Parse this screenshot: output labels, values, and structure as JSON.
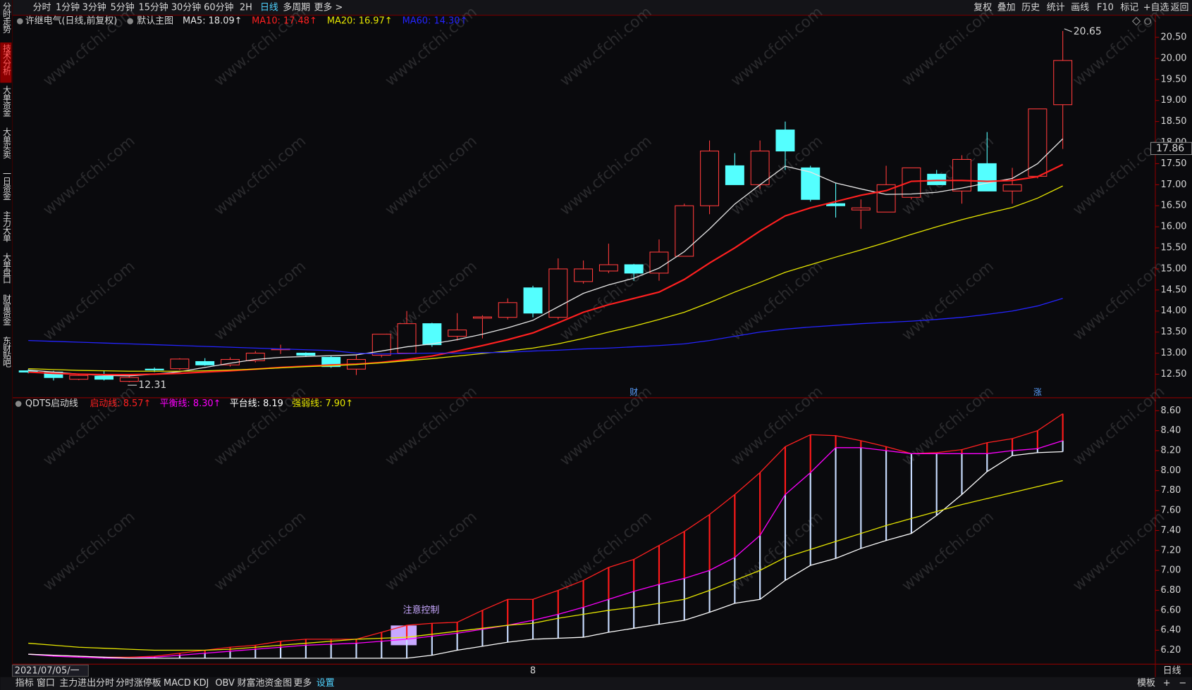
{
  "ui": {
    "tabs": [
      "分时",
      "1分钟",
      "3分钟",
      "5分钟",
      "15分钟",
      "30分钟",
      "60分钟",
      "2H",
      "日线",
      "多周期",
      "更多 >"
    ],
    "tools": [
      "复权",
      "叠加",
      "历史",
      "统计",
      "画线",
      "F10",
      "标记",
      "+自选",
      "返回"
    ],
    "sidebar": [
      "分时走势",
      "技术分析",
      "大单资金",
      "大单买卖",
      "一日资金",
      "主力大单",
      "大单盘口",
      "财富资金",
      "东财贴吧"
    ],
    "bottom_tabs": [
      "指标",
      "窗口",
      "主力进出分时",
      "分时涨停板",
      "MACD",
      "KDJ",
      "OBV",
      "财富池资金图",
      "更多",
      "设置"
    ],
    "period": "日线",
    "template": "模板",
    "plus": "+",
    "minus": "−",
    "watermark": "www.cfchi.com"
  },
  "chart_data": [
    {
      "type": "candlestick",
      "title": "许继电气(日线,前复权)",
      "subtitle": "默认主图",
      "categories": [
        "2021/07/05/一",
        null,
        null,
        null,
        null,
        null,
        null,
        null,
        null,
        null,
        null,
        null,
        null,
        null,
        null,
        null,
        null,
        null,
        null,
        null,
        "8",
        null,
        null,
        null,
        null,
        null,
        null,
        null,
        null,
        null,
        null,
        null,
        null,
        null,
        null,
        null,
        null,
        null,
        null,
        null,
        null,
        null
      ],
      "event_labels": [
        null,
        null,
        null,
        null,
        null,
        null,
        null,
        null,
        null,
        null,
        null,
        null,
        null,
        null,
        null,
        null,
        null,
        null,
        null,
        null,
        null,
        null,
        null,
        null,
        "财",
        null,
        null,
        null,
        null,
        null,
        null,
        null,
        null,
        null,
        null,
        null,
        null,
        null,
        null,
        null,
        "涨",
        null
      ],
      "open": [
        12.58,
        12.55,
        12.38,
        12.45,
        12.33,
        12.62,
        12.63,
        12.8,
        12.72,
        12.82,
        13.08,
        13.0,
        12.9,
        12.62,
        12.95,
        13.0,
        13.7,
        13.4,
        13.83,
        13.85,
        14.55,
        13.85,
        14.7,
        14.95,
        15.1,
        14.9,
        15.3,
        16.5,
        17.45,
        17.0,
        18.3,
        17.4,
        16.55,
        16.4,
        16.35,
        16.7,
        17.25,
        16.85,
        17.5,
        16.85,
        17.2,
        18.9
      ],
      "close": [
        12.55,
        12.42,
        12.47,
        12.38,
        12.42,
        12.6,
        12.86,
        12.72,
        12.85,
        13.0,
        13.1,
        12.95,
        12.68,
        12.85,
        13.45,
        13.7,
        13.2,
        13.55,
        13.86,
        14.2,
        13.95,
        15.0,
        15.0,
        15.1,
        14.9,
        15.4,
        16.5,
        17.8,
        17.0,
        17.8,
        17.8,
        16.65,
        16.5,
        16.45,
        17.0,
        17.4,
        17.0,
        17.6,
        16.85,
        17.0,
        18.8,
        19.95
      ],
      "high": [
        12.62,
        12.58,
        12.5,
        12.58,
        12.5,
        12.66,
        12.88,
        12.88,
        12.9,
        13.05,
        13.2,
        13.02,
        12.95,
        12.95,
        13.45,
        14.0,
        13.72,
        13.95,
        13.9,
        14.3,
        14.6,
        15.25,
        15.2,
        15.6,
        15.12,
        15.7,
        16.55,
        18.05,
        17.75,
        18.05,
        18.5,
        17.45,
        17.05,
        16.65,
        17.45,
        17.4,
        17.35,
        17.7,
        18.25,
        17.4,
        18.8,
        20.65
      ],
      "low": [
        12.52,
        12.35,
        12.36,
        12.35,
        12.31,
        12.55,
        12.6,
        12.7,
        12.68,
        12.78,
        12.98,
        12.92,
        12.65,
        12.48,
        12.9,
        13.0,
        13.15,
        13.3,
        13.35,
        13.8,
        13.85,
        13.8,
        14.65,
        14.9,
        14.72,
        14.72,
        15.3,
        16.3,
        17.0,
        16.9,
        17.35,
        16.6,
        16.22,
        15.95,
        16.35,
        16.65,
        17.0,
        16.55,
        16.85,
        16.55,
        17.15,
        17.85
      ],
      "up_color": "#ff3b3b",
      "down_color": "#54ffff",
      "series": [
        {
          "name": "MA5: 18.09↑",
          "color": "#e6e6e6",
          "values": [
            12.6,
            12.55,
            12.5,
            12.47,
            12.46,
            12.5,
            12.56,
            12.66,
            12.76,
            12.85,
            12.9,
            12.92,
            12.94,
            12.96,
            13.05,
            13.15,
            13.22,
            13.32,
            13.45,
            13.6,
            13.78,
            14.1,
            14.42,
            14.62,
            14.78,
            15.02,
            15.41,
            15.95,
            16.54,
            17.0,
            17.44,
            17.3,
            17.04,
            16.9,
            16.77,
            16.78,
            16.82,
            16.92,
            17.04,
            17.15,
            17.5,
            18.09
          ]
        },
        {
          "name": "MA10: 17.48↑",
          "color": "#ff2020",
          "values": [
            12.55,
            12.52,
            12.5,
            12.49,
            12.49,
            12.5,
            12.52,
            12.55,
            12.58,
            12.62,
            12.66,
            12.69,
            12.72,
            12.74,
            12.78,
            12.85,
            12.93,
            13.05,
            13.18,
            13.32,
            13.48,
            13.72,
            13.97,
            14.15,
            14.3,
            14.45,
            14.75,
            15.14,
            15.5,
            15.9,
            16.26,
            16.45,
            16.6,
            16.75,
            16.86,
            17.08,
            17.1,
            17.1,
            17.08,
            17.1,
            17.19,
            17.48
          ]
        },
        {
          "name": "MA20: 16.97↑",
          "color": "#e6e600",
          "values": [
            12.63,
            12.61,
            12.59,
            12.58,
            12.57,
            12.57,
            12.57,
            12.58,
            12.6,
            12.62,
            12.65,
            12.68,
            12.7,
            12.73,
            12.77,
            12.82,
            12.87,
            12.93,
            12.99,
            13.05,
            13.12,
            13.22,
            13.35,
            13.5,
            13.64,
            13.8,
            13.97,
            14.2,
            14.45,
            14.68,
            14.92,
            15.1,
            15.28,
            15.45,
            15.63,
            15.82,
            16.0,
            16.17,
            16.32,
            16.46,
            16.68,
            16.97
          ]
        },
        {
          "name": "MA60: 14.30↑",
          "color": "#2424ff",
          "values": [
            13.3,
            13.28,
            13.26,
            13.24,
            13.22,
            13.2,
            13.18,
            13.16,
            13.14,
            13.12,
            13.1,
            13.08,
            13.06,
            13.0,
            12.98,
            12.99,
            13.0,
            13.0,
            13.01,
            13.02,
            13.05,
            13.07,
            13.1,
            13.12,
            13.15,
            13.18,
            13.22,
            13.3,
            13.4,
            13.5,
            13.57,
            13.62,
            13.66,
            13.7,
            13.73,
            13.76,
            13.8,
            13.85,
            13.92,
            14.0,
            14.12,
            14.3
          ]
        }
      ],
      "crosshair_label": 17.86,
      "ylim": [
        11.94,
        20.99
      ],
      "yticks": [
        {
          "value": 12.5,
          "label": "12.50"
        },
        {
          "value": 13,
          "label": "13.00"
        },
        {
          "value": 13.5,
          "label": "13.50"
        },
        {
          "value": 14,
          "label": "14.00"
        },
        {
          "value": 14.5,
          "label": "14.50"
        },
        {
          "value": 15,
          "label": "15.00"
        },
        {
          "value": 15.5,
          "label": "15.50"
        },
        {
          "value": 16,
          "label": "16.00"
        },
        {
          "value": 16.5,
          "label": "16.50"
        },
        {
          "value": 17,
          "label": "17.00"
        },
        {
          "value": 17.5,
          "label": "17.50"
        },
        {
          "value": 18,
          "label": "18.00"
        },
        {
          "value": 18.5,
          "label": "18.50"
        },
        {
          "value": 19,
          "label": "19.00"
        },
        {
          "value": 19.5,
          "label": "19.50"
        },
        {
          "value": 20,
          "label": "20.00"
        },
        {
          "value": 20.5,
          "label": "20.50"
        }
      ],
      "grid": false
    },
    {
      "type": "line",
      "title": "QDTS启动线",
      "annotation": "注意控制",
      "series": [
        {
          "name": "启动线: 8.57↑",
          "color": "#ff2020",
          "values": [
            6.16,
            6.15,
            6.14,
            6.13,
            6.13,
            6.14,
            6.17,
            6.2,
            6.23,
            6.25,
            6.29,
            6.31,
            6.31,
            6.31,
            6.38,
            6.45,
            6.47,
            6.48,
            6.6,
            6.71,
            6.71,
            6.8,
            6.9,
            7.03,
            7.11,
            7.25,
            7.39,
            7.56,
            7.76,
            7.98,
            8.24,
            8.36,
            8.35,
            8.3,
            8.24,
            8.17,
            8.18,
            8.21,
            8.28,
            8.32,
            8.4,
            8.57
          ]
        },
        {
          "name": "平衡线: 8.30↑",
          "color": "#ff00ff",
          "values": [
            6.16,
            6.14,
            6.13,
            6.12,
            6.12,
            6.13,
            6.15,
            6.17,
            6.19,
            6.21,
            6.23,
            6.25,
            6.26,
            6.27,
            6.29,
            6.31,
            6.34,
            6.37,
            6.41,
            6.45,
            6.5,
            6.56,
            6.63,
            6.71,
            6.79,
            6.86,
            6.92,
            7.0,
            7.13,
            7.35,
            7.76,
            7.98,
            8.23,
            8.23,
            8.2,
            8.17,
            8.17,
            8.17,
            8.17,
            8.2,
            8.22,
            8.3
          ]
        },
        {
          "name": "平台线: 8.19",
          "color": "#ffffff",
          "values": [
            6.16,
            6.15,
            6.14,
            6.13,
            6.12,
            6.12,
            6.12,
            6.12,
            6.12,
            6.12,
            6.12,
            6.12,
            6.12,
            6.12,
            6.12,
            6.12,
            6.15,
            6.2,
            6.24,
            6.28,
            6.31,
            6.32,
            6.33,
            6.38,
            6.42,
            6.46,
            6.5,
            6.58,
            6.67,
            6.71,
            6.9,
            7.05,
            7.12,
            7.22,
            7.3,
            7.37,
            7.55,
            7.76,
            7.99,
            8.15,
            8.18,
            8.19
          ]
        },
        {
          "name": "强弱线: 7.90↑",
          "color": "#e6e600",
          "values": [
            6.27,
            6.25,
            6.23,
            6.22,
            6.21,
            6.2,
            6.2,
            6.2,
            6.21,
            6.23,
            6.25,
            6.27,
            6.29,
            6.31,
            6.32,
            6.33,
            6.36,
            6.39,
            6.42,
            6.45,
            6.47,
            6.52,
            6.56,
            6.6,
            6.63,
            6.67,
            6.71,
            6.8,
            6.9,
            7.0,
            7.13,
            7.21,
            7.29,
            7.37,
            7.45,
            7.52,
            7.59,
            7.66,
            7.72,
            7.78,
            7.84,
            7.9
          ]
        }
      ],
      "bar_colors": [
        "#ff1a1a",
        "#c8dcff"
      ],
      "ylim": [
        6.06,
        8.73
      ],
      "yticks": [
        {
          "value": 6.2,
          "label": "6.20"
        },
        {
          "value": 6.4,
          "label": "6.40"
        },
        {
          "value": 6.6,
          "label": "6.60"
        },
        {
          "value": 6.8,
          "label": "6.80"
        },
        {
          "value": 7,
          "label": "7.00"
        },
        {
          "value": 7.2,
          "label": "7.20"
        },
        {
          "value": 7.4,
          "label": "7.40"
        },
        {
          "value": 7.6,
          "label": "7.60"
        },
        {
          "value": 7.8,
          "label": "7.80"
        },
        {
          "value": 8,
          "label": "8.00"
        },
        {
          "value": 8.2,
          "label": "8.20"
        },
        {
          "value": 8.4,
          "label": "8.40"
        },
        {
          "value": 8.6,
          "label": "8.60"
        }
      ],
      "grid": false
    }
  ]
}
